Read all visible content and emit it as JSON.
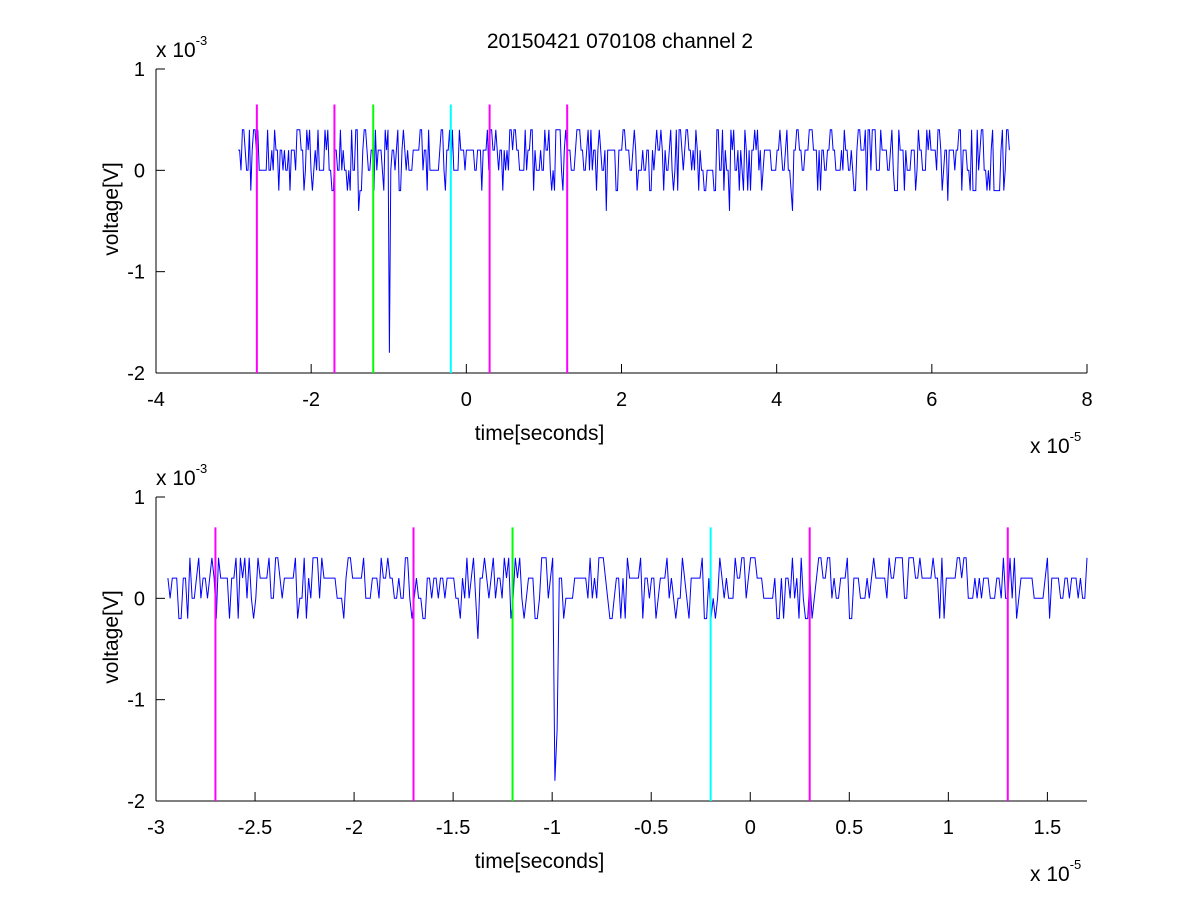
{
  "title": "20150421 070108 channel 2",
  "colors": {
    "trace": "#0000ff",
    "magenta": "#ff00ff",
    "green": "#00ff00",
    "cyan": "#00ffff",
    "axis": "#000000",
    "background": "#ffffff"
  },
  "chart_data": [
    {
      "type": "line",
      "title": "20150421 070108 channel 2",
      "xlabel": "time[seconds]",
      "ylabel": "voltage[V]",
      "x_multiplier_label": {
        "base": "x 10",
        "exp": "-5"
      },
      "y_multiplier_label": {
        "base": "x 10",
        "exp": "-3"
      },
      "xlim": [
        -4,
        8
      ],
      "ylim": [
        -2,
        1
      ],
      "xticks": [
        -4,
        -2,
        0,
        2,
        4,
        6,
        8
      ],
      "xtick_labels": [
        "-4",
        "-2",
        "0",
        "2",
        "4",
        "6",
        "8"
      ],
      "yticks": [
        -2,
        -1,
        0,
        1
      ],
      "ytick_labels": [
        "-2",
        "-1",
        "0",
        "1"
      ],
      "grid": false,
      "series": [
        {
          "color": "#0000ff",
          "signal": {
            "x_start": -2.94,
            "x_end": 7.0,
            "baseline": 0.15,
            "spikes": [
              {
                "x": -0.99,
                "y": -1.8
              },
              {
                "x": -1.38,
                "y": -0.4
              },
              {
                "x": 1.8,
                "y": -0.4
              },
              {
                "x": 3.4,
                "y": -0.4
              },
              {
                "x": 4.2,
                "y": -0.4
              },
              {
                "x": 6.2,
                "y": -0.3
              }
            ]
          }
        }
      ],
      "markers": [
        {
          "x": -2.7,
          "color": "magenta"
        },
        {
          "x": -1.7,
          "color": "magenta"
        },
        {
          "x": -1.2,
          "color": "green"
        },
        {
          "x": -0.2,
          "color": "cyan"
        },
        {
          "x": 0.3,
          "color": "magenta"
        },
        {
          "x": 1.3,
          "color": "magenta"
        }
      ],
      "marker_ylim": [
        -2,
        0.65
      ]
    },
    {
      "type": "line",
      "xlabel": "time[seconds]",
      "ylabel": "voltage[V]",
      "x_multiplier_label": {
        "base": "x 10",
        "exp": "-5"
      },
      "y_multiplier_label": {
        "base": "x 10",
        "exp": "-3"
      },
      "xlim": [
        -3,
        1.7
      ],
      "ylim": [
        -2,
        1
      ],
      "xticks": [
        -3,
        -2.5,
        -2,
        -1.5,
        -1,
        -0.5,
        0,
        0.5,
        1,
        1.5
      ],
      "xtick_labels": [
        "-3",
        "-2.5",
        "-2",
        "-1.5",
        "-1",
        "-0.5",
        "0",
        "0.5",
        "1",
        "1.5"
      ],
      "yticks": [
        -2,
        -1,
        0,
        1
      ],
      "ytick_labels": [
        "-2",
        "-1",
        "0",
        "1"
      ],
      "grid": false,
      "series": [
        {
          "color": "#0000ff",
          "signal": {
            "x_start": -2.94,
            "x_end": 1.7,
            "baseline": 0.15,
            "spikes": [
              {
                "x": -0.99,
                "y": -1.8
              },
              {
                "x": -0.98,
                "y": -1.3
              },
              {
                "x": -1.38,
                "y": -0.4
              }
            ]
          }
        }
      ],
      "markers": [
        {
          "x": -2.7,
          "color": "magenta"
        },
        {
          "x": -1.7,
          "color": "magenta"
        },
        {
          "x": -1.2,
          "color": "green"
        },
        {
          "x": -0.2,
          "color": "cyan"
        },
        {
          "x": 0.3,
          "color": "magenta"
        },
        {
          "x": 1.3,
          "color": "magenta"
        }
      ],
      "marker_ylim": [
        -2,
        0.7
      ]
    }
  ]
}
